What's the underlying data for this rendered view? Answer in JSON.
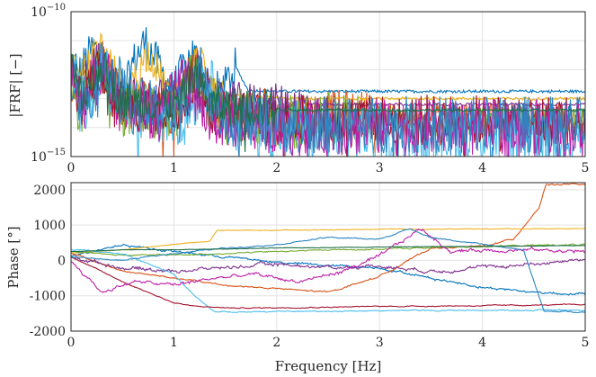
{
  "chart_data": [
    {
      "type": "line",
      "panel": "magnitude",
      "xlabel": "",
      "ylabel": "|FRF| [−]",
      "xlim": [
        0,
        5
      ],
      "ylim_log10": [
        -15,
        -10
      ],
      "yscale": "log",
      "grid": true,
      "x_ticks": [
        0,
        1,
        2,
        3,
        4,
        5
      ],
      "x_tick_labels": [
        "0",
        "1",
        "2",
        "3",
        "4",
        "5"
      ],
      "y_ticks_log10": [
        -15,
        -10
      ],
      "y_tick_labels": [
        {
          "base": "10",
          "exp": "−15"
        },
        {
          "base": "10",
          "exp": "−10"
        }
      ],
      "series": [
        {
          "color": "#0072BD",
          "start_log10": -12.6,
          "peaks": [
            [
              0.22,
              -11.2
            ],
            [
              0.72,
              -11.0
            ],
            [
              1.18,
              -11.4
            ],
            [
              1.6,
              -11.9
            ]
          ],
          "tail_log10": -12.75,
          "noise": 0.35,
          "plateau_x": 1.6
        },
        {
          "color": "#D95319",
          "start_log10": -13.0,
          "peaks": [
            [
              0.3,
              -11.8
            ],
            [
              1.2,
              -12.0
            ]
          ],
          "tail_log10": -13.6,
          "noise": 0.45,
          "plateau_x": 3.0
        },
        {
          "color": "#EDB120",
          "start_log10": -12.6,
          "peaks": [
            [
              0.28,
              -11.1
            ],
            [
              0.75,
              -11.4
            ],
            [
              1.25,
              -11.5
            ]
          ],
          "tail_log10": -13.0,
          "noise": 0.3,
          "plateau_x": 1.5
        },
        {
          "color": "#7E2F8E",
          "start_log10": -12.8,
          "peaks": [
            [
              0.25,
              -11.6
            ],
            [
              1.2,
              -11.8
            ]
          ],
          "tail_log10": -13.2,
          "noise": 0.35,
          "plateau_x": 2.3
        },
        {
          "color": "#77AC30",
          "start_log10": -13.1,
          "peaks": [
            [
              0.3,
              -12.0
            ],
            [
              1.2,
              -12.2
            ]
          ],
          "tail_log10": -13.8,
          "noise": 0.5,
          "plateau_x": 2.8
        },
        {
          "color": "#4DBEEE",
          "start_log10": -13.0,
          "peaks": [
            [
              0.3,
              -11.9
            ],
            [
              1.3,
              -12.3
            ]
          ],
          "tail_log10": -14.2,
          "noise": 0.55,
          "plateau_x": 5.1
        },
        {
          "color": "#A2142F",
          "start_log10": -13.0,
          "peaks": [
            [
              0.25,
              -12.1
            ],
            [
              1.2,
              -12.3
            ]
          ],
          "tail_log10": -13.75,
          "noise": 0.45,
          "plateau_x": 5.1
        },
        {
          "color": "#BD1FA8",
          "start_log10": -12.9,
          "peaks": [
            [
              0.3,
              -12.0
            ],
            [
              1.1,
              -12.2
            ]
          ],
          "tail_log10": -14.0,
          "noise": 0.5,
          "plateau_x": 5.1
        },
        {
          "color": "#2E86C1",
          "start_log10": -12.9,
          "peaks": [
            [
              0.35,
              -11.7
            ],
            [
              1.25,
              -12.0
            ]
          ],
          "tail_log10": -13.9,
          "noise": 0.5,
          "plateau_x": 5.1
        },
        {
          "color": "#1F6F4A",
          "start_log10": -12.9,
          "peaks": [
            [
              0.3,
              -11.8
            ],
            [
              1.2,
              -12.1
            ]
          ],
          "tail_log10": -13.4,
          "noise": 0.35,
          "plateau_x": 2.0
        }
      ]
    },
    {
      "type": "line",
      "panel": "phase",
      "xlabel": "Frequency [Hz]",
      "ylabel": "Phase [°]",
      "xlim": [
        0,
        5
      ],
      "ylim": [
        -2000,
        2200
      ],
      "grid": true,
      "x_ticks": [
        0,
        1,
        2,
        3,
        4,
        5
      ],
      "x_tick_labels": [
        "0",
        "1",
        "2",
        "3",
        "4",
        "5"
      ],
      "y_ticks": [
        -2000,
        -1000,
        0,
        1000,
        2000
      ],
      "y_tick_labels": [
        "-2000",
        "-1000",
        "0",
        "1000",
        "2000"
      ],
      "series": [
        {
          "color": "#0072BD",
          "path": [
            [
              0,
              150
            ],
            [
              0.5,
              450
            ],
            [
              1.0,
              250
            ],
            [
              1.5,
              100
            ],
            [
              2.0,
              -50
            ],
            [
              2.5,
              -150
            ],
            [
              3.0,
              -200
            ],
            [
              3.5,
              -500
            ],
            [
              4.0,
              -750
            ],
            [
              4.5,
              -900
            ],
            [
              5.0,
              -950
            ]
          ],
          "noise": 60
        },
        {
          "color": "#D95319",
          "path": [
            [
              0,
              200
            ],
            [
              0.5,
              -300
            ],
            [
              1.0,
              -500
            ],
            [
              1.5,
              -700
            ],
            [
              2.0,
              -800
            ],
            [
              2.5,
              -900
            ],
            [
              3.0,
              -450
            ],
            [
              3.5,
              350
            ],
            [
              4.0,
              400
            ],
            [
              4.3,
              600
            ],
            [
              4.55,
              1500
            ],
            [
              4.62,
              2150
            ],
            [
              5.0,
              2150
            ]
          ],
          "noise": 40
        },
        {
          "color": "#EDB120",
          "path": [
            [
              0,
              200
            ],
            [
              0.5,
              300
            ],
            [
              1.0,
              450
            ],
            [
              1.35,
              550
            ],
            [
              1.42,
              850
            ],
            [
              2.0,
              850
            ],
            [
              3.0,
              880
            ],
            [
              5.0,
              900
            ]
          ],
          "noise": 15
        },
        {
          "color": "#7E2F8E",
          "path": [
            [
              0,
              100
            ],
            [
              0.5,
              -200
            ],
            [
              1.0,
              -300
            ],
            [
              1.5,
              -200
            ],
            [
              2.0,
              -100
            ],
            [
              2.5,
              -200
            ],
            [
              3.0,
              -150
            ],
            [
              3.5,
              -300
            ],
            [
              4.0,
              -200
            ],
            [
              4.5,
              -100
            ],
            [
              5.0,
              50
            ]
          ],
          "noise": 90
        },
        {
          "color": "#77AC30",
          "path": [
            [
              0,
              250
            ],
            [
              0.5,
              150
            ],
            [
              1.0,
              150
            ],
            [
              1.5,
              200
            ],
            [
              2.0,
              250
            ],
            [
              2.5,
              300
            ],
            [
              3.0,
              320
            ],
            [
              4.0,
              400
            ],
            [
              5.0,
              450
            ]
          ],
          "noise": 35
        },
        {
          "color": "#4DBEEE",
          "path": [
            [
              0,
              300
            ],
            [
              0.5,
              200
            ],
            [
              1.0,
              -400
            ],
            [
              1.2,
              -1000
            ],
            [
              1.4,
              -1450
            ],
            [
              2.0,
              -1450
            ],
            [
              3.0,
              -1420
            ],
            [
              5.0,
              -1400
            ]
          ],
          "noise": 30
        },
        {
          "color": "#A2142F",
          "path": [
            [
              0,
              100
            ],
            [
              0.5,
              -600
            ],
            [
              1.0,
              -1200
            ],
            [
              1.2,
              -1300
            ],
            [
              1.6,
              -1350
            ],
            [
              2.5,
              -1320
            ],
            [
              3.0,
              -1300
            ],
            [
              4.0,
              -1280
            ],
            [
              5.0,
              -1250
            ]
          ],
          "noise": 25
        },
        {
          "color": "#BD1FA8",
          "path": [
            [
              0,
              0
            ],
            [
              0.3,
              -900
            ],
            [
              0.6,
              -600
            ],
            [
              1.0,
              -700
            ],
            [
              1.4,
              -500
            ],
            [
              1.8,
              -400
            ],
            [
              2.2,
              -600
            ],
            [
              2.6,
              -350
            ],
            [
              3.0,
              100
            ],
            [
              3.4,
              900
            ],
            [
              3.7,
              250
            ],
            [
              4.0,
              300
            ],
            [
              4.5,
              300
            ],
            [
              5.0,
              250
            ]
          ],
          "noise": 90
        },
        {
          "color": "#2E86C1",
          "path": [
            [
              0,
              100
            ],
            [
              0.5,
              0
            ],
            [
              1.0,
              200
            ],
            [
              1.5,
              350
            ],
            [
              2.0,
              450
            ],
            [
              2.5,
              650
            ],
            [
              3.0,
              600
            ],
            [
              3.3,
              900
            ],
            [
              3.5,
              650
            ],
            [
              4.0,
              450
            ],
            [
              4.4,
              300
            ],
            [
              4.6,
              -1450
            ],
            [
              5.0,
              -1450
            ]
          ],
          "noise": 30
        },
        {
          "color": "#1F6F4A",
          "path": [
            [
              0,
              250
            ],
            [
              0.5,
              300
            ],
            [
              1.0,
              300
            ],
            [
              2.0,
              350
            ],
            [
              3.0,
              380
            ],
            [
              4.0,
              400
            ],
            [
              5.0,
              420
            ]
          ],
          "noise": 10
        }
      ]
    }
  ]
}
